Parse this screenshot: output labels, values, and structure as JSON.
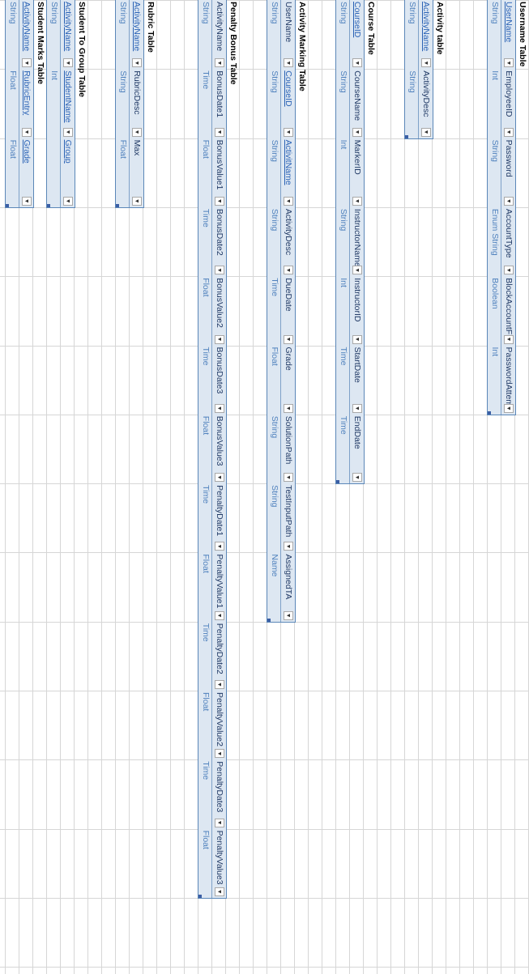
{
  "tables": [
    {
      "title": "Username Table",
      "headers": [
        "UserName",
        "EmployeeID",
        "Password",
        "AccountType",
        "BlockAccountFlag",
        "PasswordAttempts"
      ],
      "header_link_cols": [
        0
      ],
      "types": [
        "String",
        "Int",
        "String",
        "Enum String",
        "Boolean",
        "Int"
      ]
    },
    {
      "title": "Activity table",
      "headers": [
        "ActivityName",
        "ActivityDesc"
      ],
      "header_link_cols": [
        0
      ],
      "types": [
        "String",
        "String"
      ]
    },
    {
      "title": "Course Table",
      "headers": [
        "CourseID",
        "CourseName",
        "MarkerID",
        "InstructorName",
        "InstructorID",
        "StartDate",
        "EndDate"
      ],
      "header_link_cols": [
        0
      ],
      "types": [
        "String",
        "String",
        "Int",
        "String",
        "Int",
        "Time",
        "Time"
      ]
    },
    {
      "title": "Activity Marking Table",
      "headers": [
        "UserName",
        "CourseID",
        "ActivitName",
        "ActivityDesc",
        "DueDate",
        "Grade",
        "SolutionPath",
        "TestInputPath",
        "AssignedTA"
      ],
      "header_link_cols": [
        1,
        2
      ],
      "types": [
        "String",
        "String",
        "String",
        "String",
        "Time",
        "Float",
        "String",
        "String",
        "Name"
      ]
    },
    {
      "title": "Penalty Bonus Table",
      "headers": [
        "ActivityName",
        "BonusDate1",
        "BonusValue1",
        "BonusDate2",
        "BonusValue2",
        "BonusDate3",
        "BonusValue3",
        "PenaltyDate1",
        "PenaltyValue1",
        "PenaltyDate2",
        "PenaltyValue2",
        "PenaltyDate3",
        "PenaltyValue3"
      ],
      "header_link_cols": [],
      "types": [
        "String",
        "Time",
        "Float",
        "Time",
        "Float",
        "Time",
        "Float",
        "Time",
        "Float",
        "Time",
        "Float",
        "Time",
        "Float"
      ]
    },
    {
      "title": "Rubric Table",
      "headers": [
        "ActivityName",
        "RubricDesc",
        "Max"
      ],
      "header_link_cols": [
        0
      ],
      "types": [
        "String",
        "String",
        "Float"
      ]
    },
    {
      "title": "Student To Group Table",
      "headers": [
        "ActivityName",
        "StudentName",
        "Group"
      ],
      "header_link_cols": [
        0,
        1,
        2
      ],
      "types": [
        "String",
        "Int",
        ""
      ]
    },
    {
      "title": "Student Marks Table",
      "headers": [
        "ActivityName",
        "RubricEntry",
        "Grade"
      ],
      "header_link_cols": [
        0,
        1,
        2
      ],
      "types": [
        "String",
        "Float",
        "Float"
      ]
    }
  ]
}
